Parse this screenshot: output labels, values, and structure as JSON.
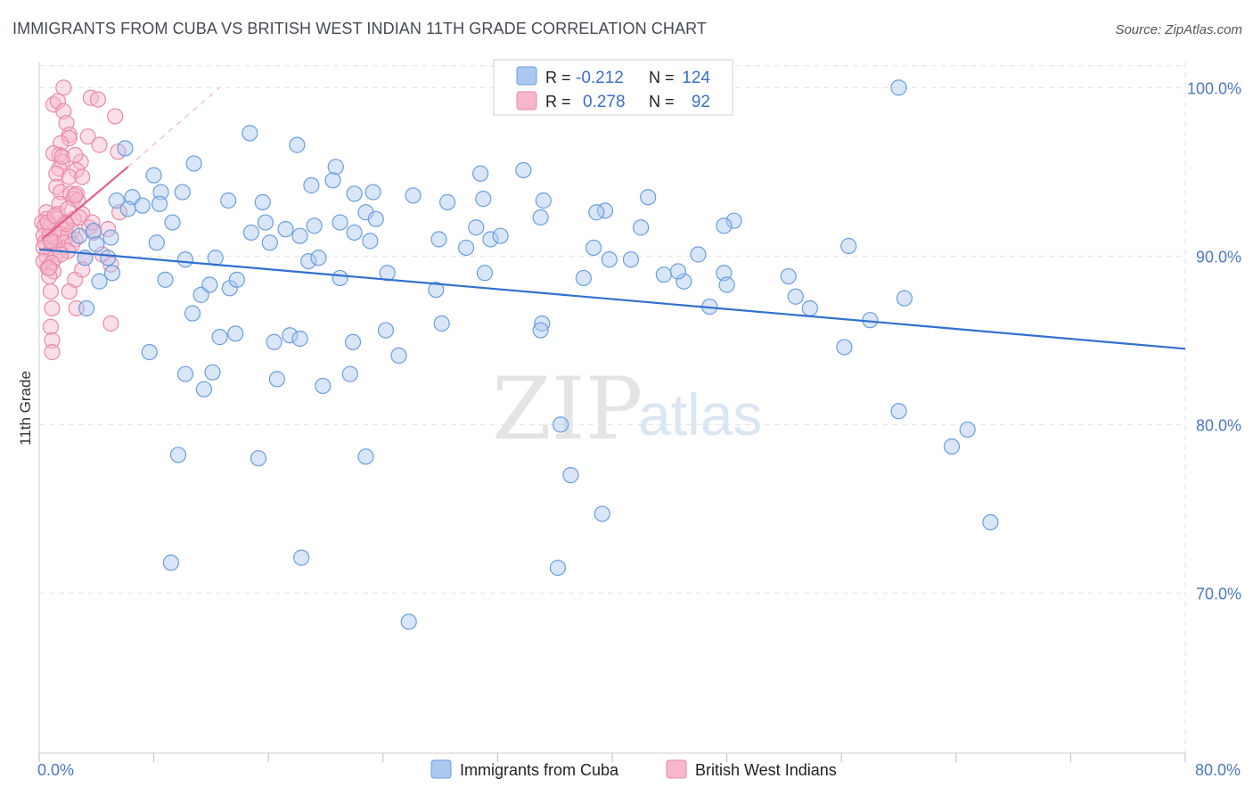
{
  "header": {
    "title": "IMMIGRANTS FROM CUBA VS BRITISH WEST INDIAN 11TH GRADE CORRELATION CHART",
    "source": "Source: ZipAtlas.com"
  },
  "watermark": {
    "zip": "ZIP",
    "atlas": "atlas"
  },
  "legend_top": {
    "rows": [
      {
        "r_label": "R =",
        "r_value": "-0.212",
        "n_label": "N =",
        "n_value": "124"
      },
      {
        "r_label": "R =",
        "r_value": "0.278",
        "n_label": "N =",
        "n_value": "92"
      }
    ]
  },
  "legend_bottom": {
    "items": [
      {
        "label": "Immigrants from Cuba"
      },
      {
        "label": "British West Indians"
      }
    ]
  },
  "colors": {
    "blue_fill": "#aac8f0",
    "blue_stroke": "#6a9ee0",
    "blue_line": "#3070d0",
    "pink_fill": "#f6b7cb",
    "pink_stroke": "#e98aa8",
    "pink_line": "#e0608a",
    "grid": "#e2e2e2",
    "axis_label": "#4a78c0"
  },
  "chart_data": {
    "type": "scatter",
    "ylabel": "11th Grade",
    "x_tick_labels": [
      "0.0%",
      "80.0%"
    ],
    "y_tick_labels": [
      "100.0%",
      "90.0%",
      "80.0%",
      "70.0%"
    ],
    "y_ticks": [
      100,
      90,
      80,
      70
    ],
    "xlim": [
      0,
      80
    ],
    "ylim": [
      60.5,
      101.5
    ],
    "series": [
      {
        "name": "Immigrants from Cuba",
        "color": "blue",
        "trend": {
          "x": [
            0,
            80
          ],
          "y": [
            90.4,
            84.5
          ]
        },
        "points": [
          [
            6.0,
            96.4
          ],
          [
            14.7,
            97.3
          ],
          [
            18.0,
            96.6
          ],
          [
            10.8,
            95.5
          ],
          [
            20.7,
            95.3
          ],
          [
            60.0,
            100.0
          ],
          [
            8.0,
            94.8
          ],
          [
            8.5,
            93.8
          ],
          [
            10.0,
            93.8
          ],
          [
            6.5,
            93.5
          ],
          [
            5.4,
            93.3
          ],
          [
            13.2,
            93.3
          ],
          [
            15.6,
            93.2
          ],
          [
            19.0,
            94.2
          ],
          [
            20.5,
            94.5
          ],
          [
            22.0,
            93.7
          ],
          [
            23.3,
            93.8
          ],
          [
            26.1,
            93.6
          ],
          [
            28.5,
            93.2
          ],
          [
            30.8,
            94.9
          ],
          [
            33.8,
            95.1
          ],
          [
            35.2,
            93.3
          ],
          [
            42.5,
            93.5
          ],
          [
            6.2,
            92.8
          ],
          [
            7.2,
            93.0
          ],
          [
            9.3,
            92.0
          ],
          [
            15.8,
            92.0
          ],
          [
            22.8,
            92.6
          ],
          [
            23.5,
            92.2
          ],
          [
            35.0,
            92.3
          ],
          [
            39.5,
            92.7
          ],
          [
            48.5,
            92.1
          ],
          [
            2.8,
            91.2
          ],
          [
            5.0,
            91.1
          ],
          [
            3.8,
            91.5
          ],
          [
            4.0,
            90.7
          ],
          [
            8.2,
            90.8
          ],
          [
            14.8,
            91.4
          ],
          [
            16.1,
            90.8
          ],
          [
            17.2,
            91.6
          ],
          [
            19.2,
            91.8
          ],
          [
            22.0,
            91.4
          ],
          [
            27.9,
            91.0
          ],
          [
            30.5,
            91.7
          ],
          [
            31.5,
            91.0
          ],
          [
            32.2,
            91.2
          ],
          [
            42.0,
            91.7
          ],
          [
            47.8,
            91.8
          ],
          [
            3.2,
            89.9
          ],
          [
            4.8,
            89.9
          ],
          [
            10.2,
            89.8
          ],
          [
            12.3,
            89.9
          ],
          [
            18.8,
            89.7
          ],
          [
            19.5,
            89.9
          ],
          [
            29.8,
            90.5
          ],
          [
            38.7,
            90.5
          ],
          [
            39.8,
            89.8
          ],
          [
            41.3,
            89.8
          ],
          [
            46.0,
            90.1
          ],
          [
            56.5,
            90.6
          ],
          [
            4.2,
            88.5
          ],
          [
            5.1,
            89.0
          ],
          [
            8.8,
            88.6
          ],
          [
            11.3,
            87.7
          ],
          [
            11.9,
            88.3
          ],
          [
            13.3,
            88.1
          ],
          [
            13.8,
            88.6
          ],
          [
            21.0,
            88.7
          ],
          [
            24.3,
            89.0
          ],
          [
            27.7,
            88.0
          ],
          [
            31.1,
            89.0
          ],
          [
            38.0,
            88.7
          ],
          [
            43.6,
            88.9
          ],
          [
            45.0,
            88.5
          ],
          [
            52.3,
            88.8
          ],
          [
            52.8,
            87.6
          ],
          [
            60.4,
            87.5
          ],
          [
            46.8,
            87.0
          ],
          [
            53.8,
            86.9
          ],
          [
            58.0,
            86.2
          ],
          [
            3.3,
            86.9
          ],
          [
            10.7,
            86.6
          ],
          [
            28.1,
            86.0
          ],
          [
            21.9,
            84.9
          ],
          [
            35.1,
            86.0
          ],
          [
            35.0,
            85.6
          ],
          [
            12.6,
            85.2
          ],
          [
            13.7,
            85.4
          ],
          [
            16.4,
            84.9
          ],
          [
            17.5,
            85.3
          ],
          [
            18.2,
            85.1
          ],
          [
            24.2,
            85.6
          ],
          [
            25.1,
            84.1
          ],
          [
            56.2,
            84.6
          ],
          [
            7.7,
            84.3
          ],
          [
            10.2,
            83.0
          ],
          [
            12.1,
            83.1
          ],
          [
            11.5,
            82.1
          ],
          [
            16.6,
            82.7
          ],
          [
            19.8,
            82.3
          ],
          [
            21.7,
            83.0
          ],
          [
            36.4,
            80.0
          ],
          [
            60.0,
            80.8
          ],
          [
            64.8,
            79.7
          ],
          [
            63.7,
            78.7
          ],
          [
            9.7,
            78.2
          ],
          [
            15.3,
            78.0
          ],
          [
            22.8,
            78.1
          ],
          [
            37.1,
            77.0
          ],
          [
            39.3,
            74.7
          ],
          [
            66.4,
            74.2
          ],
          [
            9.2,
            71.8
          ],
          [
            18.3,
            72.1
          ],
          [
            36.2,
            71.5
          ],
          [
            25.8,
            68.3
          ],
          [
            38.9,
            92.6
          ],
          [
            47.8,
            89.0
          ],
          [
            21.0,
            92.0
          ],
          [
            48.0,
            88.3
          ],
          [
            18.2,
            91.2
          ],
          [
            8.4,
            93.1
          ],
          [
            23.1,
            90.9
          ],
          [
            31.0,
            93.4
          ],
          [
            44.6,
            89.1
          ]
        ]
      },
      {
        "name": "British West Indians",
        "color": "pink",
        "trend": {
          "x": [
            0.2,
            6.2
          ],
          "y": [
            91.0,
            95.3
          ]
        },
        "trend_ext": {
          "x": [
            6.2,
            12.6
          ],
          "y": [
            95.3,
            100.0
          ]
        },
        "points": [
          [
            1.7,
            100.0
          ],
          [
            3.6,
            99.4
          ],
          [
            4.1,
            99.3
          ],
          [
            1.0,
            99.0
          ],
          [
            1.3,
            99.2
          ],
          [
            1.7,
            98.6
          ],
          [
            5.3,
            98.3
          ],
          [
            1.9,
            97.9
          ],
          [
            2.1,
            97.2
          ],
          [
            2.1,
            97.0
          ],
          [
            3.4,
            97.1
          ],
          [
            1.5,
            96.7
          ],
          [
            4.2,
            96.6
          ],
          [
            5.5,
            96.2
          ],
          [
            1.4,
            96.0
          ],
          [
            1.0,
            96.1
          ],
          [
            1.6,
            95.6
          ],
          [
            2.9,
            95.6
          ],
          [
            1.4,
            95.2
          ],
          [
            2.6,
            95.1
          ],
          [
            1.2,
            94.9
          ],
          [
            2.1,
            94.7
          ],
          [
            3.0,
            94.7
          ],
          [
            1.2,
            94.1
          ],
          [
            1.5,
            93.8
          ],
          [
            2.2,
            93.7
          ],
          [
            2.4,
            93.4
          ],
          [
            2.6,
            93.7
          ],
          [
            2.7,
            93.3
          ],
          [
            1.4,
            93.1
          ],
          [
            0.5,
            92.6
          ],
          [
            1.3,
            92.5
          ],
          [
            2.0,
            92.8
          ],
          [
            3.0,
            92.5
          ],
          [
            5.6,
            92.6
          ],
          [
            0.5,
            92.2
          ],
          [
            1.2,
            92.2
          ],
          [
            1.8,
            92.0
          ],
          [
            2.4,
            92.2
          ],
          [
            0.2,
            92.0
          ],
          [
            0.4,
            91.8
          ],
          [
            0.8,
            91.8
          ],
          [
            1.6,
            91.6
          ],
          [
            2.3,
            91.5
          ],
          [
            3.5,
            91.7
          ],
          [
            4.8,
            91.6
          ],
          [
            0.3,
            91.2
          ],
          [
            0.7,
            91.2
          ],
          [
            1.2,
            91.1
          ],
          [
            1.5,
            91.3
          ],
          [
            2.0,
            91.2
          ],
          [
            2.5,
            91.0
          ],
          [
            0.4,
            90.8
          ],
          [
            1.0,
            90.8
          ],
          [
            1.7,
            90.8
          ],
          [
            2.3,
            90.7
          ],
          [
            0.3,
            90.5
          ],
          [
            0.8,
            90.3
          ],
          [
            1.4,
            90.3
          ],
          [
            2.0,
            90.3
          ],
          [
            0.5,
            90.0
          ],
          [
            1.1,
            89.9
          ],
          [
            1.5,
            90.1
          ],
          [
            0.3,
            89.7
          ],
          [
            0.9,
            89.6
          ],
          [
            4.4,
            90.1
          ],
          [
            5.0,
            89.5
          ],
          [
            0.6,
            89.3
          ],
          [
            1.0,
            89.1
          ],
          [
            0.7,
            88.8
          ],
          [
            2.5,
            88.6
          ],
          [
            0.8,
            87.9
          ],
          [
            2.1,
            87.9
          ],
          [
            0.9,
            86.9
          ],
          [
            2.6,
            86.9
          ],
          [
            5.0,
            86.0
          ],
          [
            0.8,
            85.8
          ],
          [
            0.9,
            85.0
          ],
          [
            0.9,
            84.3
          ],
          [
            2.8,
            92.3
          ],
          [
            2.5,
            93.6
          ],
          [
            3.8,
            91.4
          ],
          [
            3.2,
            89.9
          ],
          [
            0.6,
            92.0
          ],
          [
            1.1,
            92.4
          ],
          [
            0.8,
            90.9
          ],
          [
            1.9,
            91.9
          ],
          [
            3.0,
            89.2
          ],
          [
            0.7,
            89.3
          ],
          [
            1.6,
            95.9
          ],
          [
            2.5,
            96.0
          ],
          [
            3.7,
            92.0
          ]
        ]
      }
    ]
  }
}
